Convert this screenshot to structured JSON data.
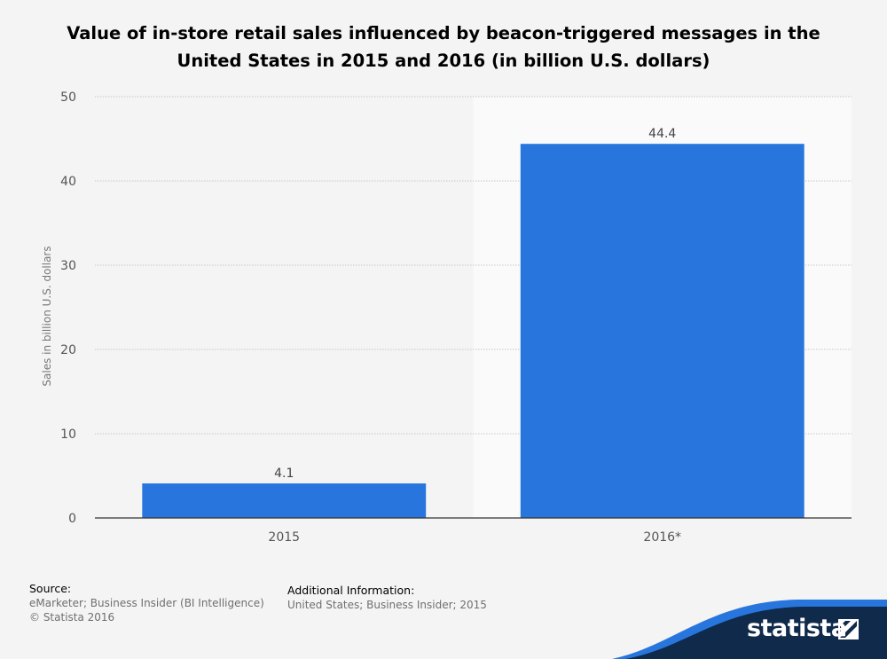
{
  "title": "Value of in-store retail sales influenced by beacon-triggered messages in the United States in 2015 and 2016 (in billion U.S. dollars)",
  "chart_data": {
    "type": "bar",
    "categories": [
      "2015",
      "2016*"
    ],
    "values": [
      4.1,
      44.4
    ],
    "data_labels": [
      "4.1",
      "44.4"
    ],
    "ylabel": "Sales in billion U.S. dollars",
    "ylim": [
      0,
      50
    ],
    "yticks": [
      0,
      10,
      20,
      30,
      40,
      50
    ],
    "grid": true,
    "bar_color": "#2876dd",
    "highlight_color": "#fafafa"
  },
  "footer": {
    "source_heading": "Source:",
    "source_lines": [
      "eMarketer; Business Insider (BI Intelligence)",
      "© Statista 2016"
    ],
    "additional_heading": "Additional Information:",
    "additional_text": "United States; Business Insider; 2015"
  },
  "brand": {
    "name": "statista",
    "dark_color": "#0f2a4a",
    "accent_color": "#2876dd"
  }
}
